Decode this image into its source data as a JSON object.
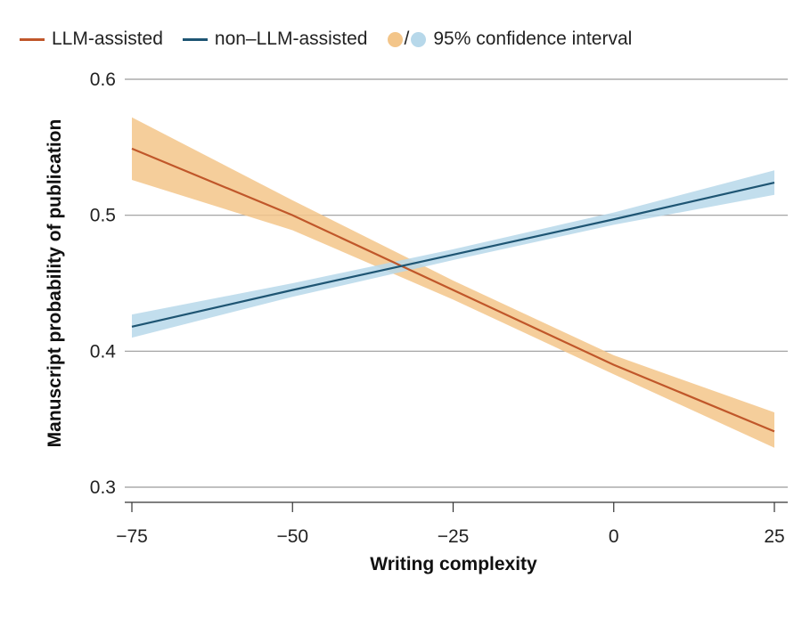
{
  "legend": {
    "llm_label": "LLM-assisted",
    "non_llm_label": "non–LLM-assisted",
    "slash": "/",
    "ci_label": "95% confidence interval"
  },
  "colors": {
    "llm_line": "#c0572a",
    "llm_band": "#f3c589",
    "non_llm_line": "#1e5573",
    "non_llm_band": "#b7d8ea",
    "grid": "#9a9a9a",
    "axis": "#333333"
  },
  "chart_data": {
    "type": "line",
    "title": "",
    "xlabel": "Writing complexity",
    "ylabel": "Manuscript probability of publication",
    "xlim": [
      -75,
      25
    ],
    "ylim": [
      0.3,
      0.6
    ],
    "x_ticks": [
      -75,
      -50,
      -25,
      0,
      25
    ],
    "x_tick_labels": [
      "−75",
      "−50",
      "−25",
      "0",
      "25"
    ],
    "y_ticks": [
      0.3,
      0.4,
      0.5,
      0.6
    ],
    "y_tick_labels": [
      "0.3",
      "0.4",
      "0.5",
      "0.6"
    ],
    "grid": "horizontal",
    "legend_position": "top-left",
    "series": [
      {
        "name": "LLM-assisted",
        "color": "#c0572a",
        "x": [
          -75,
          -50,
          -25,
          0,
          25
        ],
        "y": [
          0.549,
          0.5,
          0.445,
          0.39,
          0.341
        ],
        "ci_lower": [
          0.526,
          0.489,
          0.438,
          0.383,
          0.329
        ],
        "ci_upper": [
          0.572,
          0.511,
          0.452,
          0.397,
          0.355
        ]
      },
      {
        "name": "non–LLM-assisted",
        "color": "#1e5573",
        "x": [
          -75,
          -50,
          -25,
          0,
          25
        ],
        "y": [
          0.418,
          0.445,
          0.471,
          0.497,
          0.524
        ],
        "ci_lower": [
          0.41,
          0.44,
          0.467,
          0.493,
          0.515
        ],
        "ci_upper": [
          0.427,
          0.45,
          0.475,
          0.502,
          0.533
        ]
      }
    ]
  }
}
